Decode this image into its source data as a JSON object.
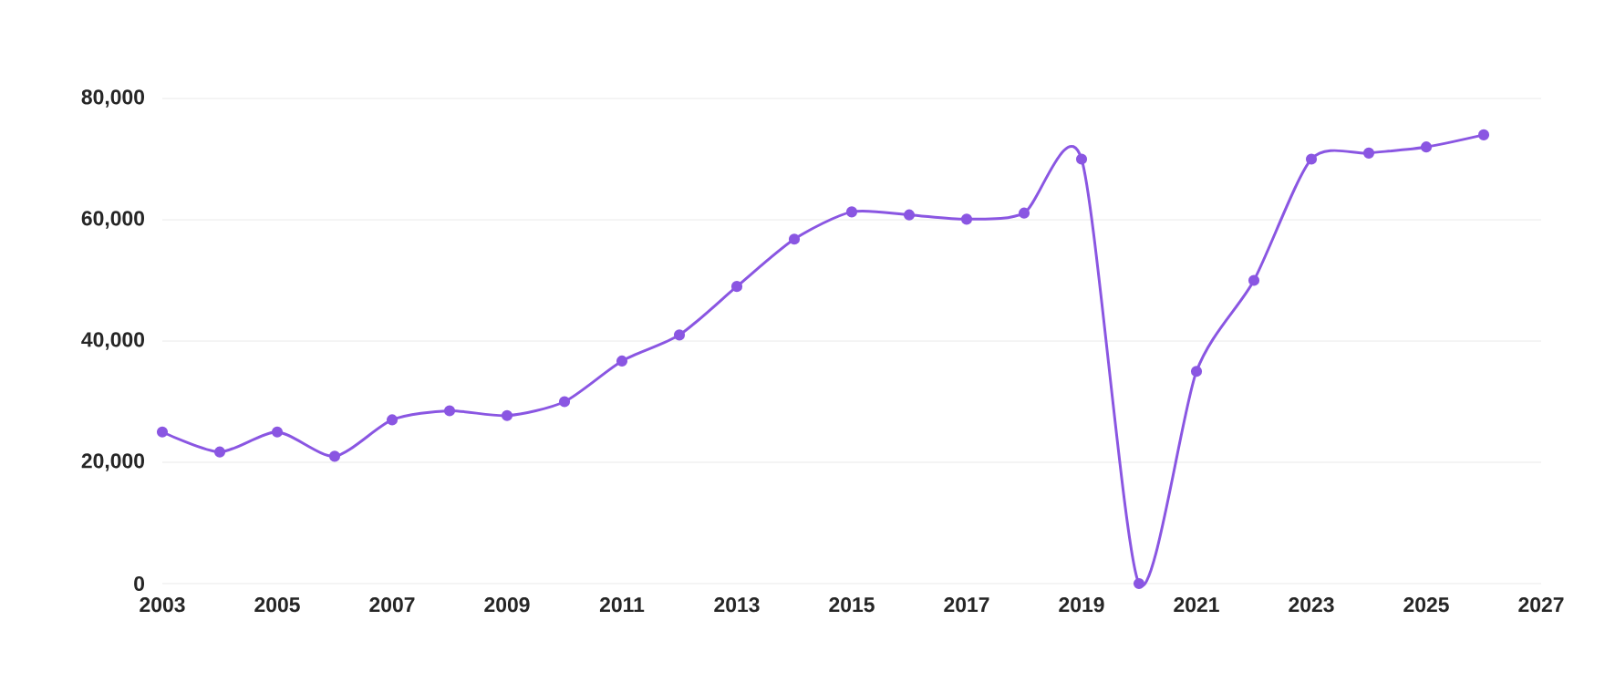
{
  "chart_data": {
    "type": "line",
    "x": [
      2003,
      2004,
      2005,
      2006,
      2007,
      2008,
      2009,
      2010,
      2011,
      2012,
      2013,
      2014,
      2015,
      2016,
      2017,
      2018,
      2019,
      2020,
      2021,
      2022,
      2023,
      2024,
      2025,
      2026
    ],
    "values": [
      25000,
      21700,
      25000,
      21000,
      27000,
      28500,
      27700,
      30000,
      36700,
      41000,
      49000,
      56800,
      61300,
      60800,
      60100,
      61100,
      70000,
      0,
      35000,
      50000,
      70000,
      71000,
      72000,
      74000
    ],
    "color": "#8a56e2",
    "marker": "circle",
    "line_style": "solid",
    "grid": "y",
    "xlim": [
      2003,
      2027
    ],
    "ylim": [
      0,
      80000
    ],
    "xticks": [
      2003,
      2005,
      2007,
      2009,
      2011,
      2013,
      2015,
      2017,
      2019,
      2021,
      2023,
      2025,
      2027
    ],
    "yticks": [
      {
        "value": 0,
        "label": "0"
      },
      {
        "value": 20000,
        "label": "20,000"
      },
      {
        "value": 40000,
        "label": "40,000"
      },
      {
        "value": 60000,
        "label": "60,000"
      },
      {
        "value": 80000,
        "label": "80,000"
      }
    ]
  }
}
